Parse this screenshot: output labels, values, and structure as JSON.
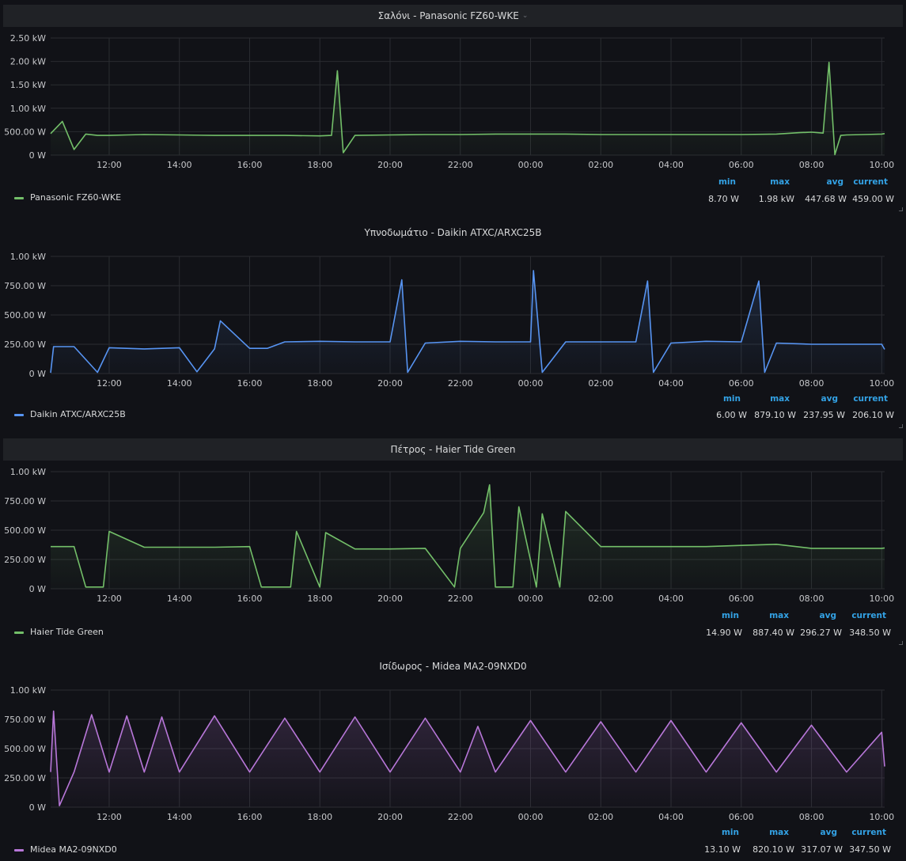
{
  "panels": [
    {
      "title": "Σαλόνι - Panasonic FZ60-WKE",
      "header_style": "bar",
      "has_chevron": true,
      "color": "#73bf69",
      "y_ticks": [
        "2.50 kW",
        "2.00 kW",
        "1.50 kW",
        "1.00 kW",
        "500.00 W",
        "0 W"
      ],
      "y_max": 2500,
      "x_ticks": [
        "12:00",
        "14:00",
        "16:00",
        "18:00",
        "20:00",
        "22:00",
        "00:00",
        "02:00",
        "04:00",
        "06:00",
        "08:00",
        "10:00"
      ],
      "legend": "Panasonic FZ60-WKE",
      "stats_labels": [
        "min",
        "max",
        "avg",
        "current"
      ],
      "stats_values": [
        "8.70 W",
        "1.98 kW",
        "447.68 W",
        "459.00 W"
      ]
    },
    {
      "title": "Υπνοδωμάτιο - Daikin ATXC/ARXC25B",
      "header_style": "plain",
      "has_chevron": false,
      "color": "#5794f2",
      "y_ticks": [
        "1.00 kW",
        "750.00 W",
        "500.00 W",
        "250.00 W",
        "0 W"
      ],
      "y_max": 1000,
      "x_ticks": [
        "12:00",
        "14:00",
        "16:00",
        "18:00",
        "20:00",
        "22:00",
        "00:00",
        "02:00",
        "04:00",
        "06:00",
        "08:00",
        "10:00"
      ],
      "legend": "Daikin ATXC/ARXC25B",
      "stats_labels": [
        "min",
        "max",
        "avg",
        "current"
      ],
      "stats_values": [
        "6.00 W",
        "879.10 W",
        "237.95 W",
        "206.10 W"
      ]
    },
    {
      "title": "Πέτρος - Haier Tide Green",
      "header_style": "bar",
      "has_chevron": false,
      "color": "#73bf69",
      "y_ticks": [
        "1.00 kW",
        "750.00 W",
        "500.00 W",
        "250.00 W",
        "0 W"
      ],
      "y_max": 1000,
      "x_ticks": [
        "12:00",
        "14:00",
        "16:00",
        "18:00",
        "20:00",
        "22:00",
        "00:00",
        "02:00",
        "04:00",
        "06:00",
        "08:00",
        "10:00"
      ],
      "legend": "Haier Tide Green",
      "stats_labels": [
        "min",
        "max",
        "avg",
        "current"
      ],
      "stats_values": [
        "14.90 W",
        "887.40 W",
        "296.27 W",
        "348.50 W"
      ]
    },
    {
      "title": "Ισίδωρος - Midea MA2-09NXD0",
      "header_style": "plain",
      "has_chevron": false,
      "color": "#b877d9",
      "y_ticks": [
        "1.00 kW",
        "750.00 W",
        "500.00 W",
        "250.00 W",
        "0 W"
      ],
      "y_max": 1000,
      "x_ticks": [
        "12:00",
        "14:00",
        "16:00",
        "18:00",
        "20:00",
        "22:00",
        "00:00",
        "02:00",
        "04:00",
        "06:00",
        "08:00",
        "10:00"
      ],
      "legend": "Midea MA2-09NXD0",
      "stats_labels": [
        "min",
        "max",
        "avg",
        "current"
      ],
      "stats_values": [
        "13.10 W",
        "820.10 W",
        "317.07 W",
        "347.50 W"
      ]
    }
  ],
  "chart_data": [
    {
      "type": "line",
      "title": "Σαλόνι - Panasonic FZ60-WKE",
      "xlabel": "",
      "ylabel": "",
      "ylim": [
        0,
        2500
      ],
      "y_unit": "W",
      "grid": true,
      "series": [
        {
          "name": "Panasonic FZ60-WKE",
          "x": [
            "10:20",
            "10:40",
            "11:00",
            "11:20",
            "11:40",
            "12:00",
            "12:30",
            "13:00",
            "14:00",
            "15:00",
            "16:00",
            "17:00",
            "18:00",
            "18:20",
            "18:30",
            "18:40",
            "19:00",
            "20:00",
            "21:00",
            "22:00",
            "23:00",
            "00:00",
            "01:00",
            "02:00",
            "03:00",
            "04:00",
            "05:00",
            "06:00",
            "07:00",
            "07:40",
            "08:00",
            "08:20",
            "08:30",
            "08:40",
            "08:50",
            "09:00",
            "09:30",
            "10:00",
            "10:05"
          ],
          "values": [
            460,
            720,
            120,
            450,
            420,
            420,
            430,
            440,
            430,
            420,
            420,
            420,
            410,
            420,
            1800,
            50,
            420,
            430,
            440,
            440,
            450,
            450,
            450,
            440,
            440,
            440,
            440,
            440,
            450,
            480,
            490,
            470,
            1980,
            10,
            420,
            430,
            440,
            450,
            459
          ]
        }
      ]
    },
    {
      "type": "line",
      "title": "Υπνοδωμάτιο - Daikin ATXC/ARXC25B",
      "xlabel": "",
      "ylabel": "",
      "ylim": [
        0,
        1000
      ],
      "y_unit": "W",
      "grid": true,
      "series": [
        {
          "name": "Daikin ATXC/ARXC25B",
          "x": [
            "10:20",
            "10:25",
            "11:00",
            "11:40",
            "12:00",
            "13:00",
            "14:00",
            "14:30",
            "15:00",
            "15:10",
            "16:00",
            "16:30",
            "17:00",
            "18:00",
            "19:00",
            "20:00",
            "20:20",
            "20:30",
            "21:00",
            "22:00",
            "23:00",
            "00:00",
            "00:05",
            "00:20",
            "01:00",
            "02:00",
            "03:00",
            "03:20",
            "03:30",
            "04:00",
            "05:00",
            "06:00",
            "06:30",
            "06:40",
            "07:00",
            "08:00",
            "09:00",
            "10:00",
            "10:05"
          ],
          "values": [
            6,
            230,
            230,
            10,
            220,
            210,
            220,
            15,
            210,
            450,
            215,
            215,
            270,
            275,
            270,
            270,
            800,
            10,
            260,
            275,
            270,
            270,
            879,
            10,
            270,
            270,
            270,
            790,
            10,
            260,
            275,
            270,
            790,
            10,
            260,
            250,
            250,
            250,
            206
          ]
        }
      ]
    },
    {
      "type": "line",
      "title": "Πέτρος - Haier Tide Green",
      "xlabel": "",
      "ylabel": "",
      "ylim": [
        0,
        1000
      ],
      "y_unit": "W",
      "grid": true,
      "series": [
        {
          "name": "Haier Tide Green",
          "x": [
            "10:20",
            "11:00",
            "11:20",
            "11:50",
            "12:00",
            "13:00",
            "14:00",
            "15:00",
            "16:00",
            "16:20",
            "17:10",
            "17:20",
            "18:00",
            "18:10",
            "19:00",
            "20:00",
            "21:00",
            "21:50",
            "22:00",
            "22:40",
            "22:50",
            "23:00",
            "23:30",
            "23:40",
            "00:10",
            "00:20",
            "00:50",
            "01:00",
            "02:00",
            "03:00",
            "04:00",
            "05:00",
            "06:00",
            "07:00",
            "08:00",
            "09:00",
            "10:00",
            "10:05"
          ],
          "values": [
            360,
            360,
            15,
            15,
            490,
            355,
            355,
            355,
            360,
            15,
            15,
            490,
            15,
            480,
            340,
            340,
            345,
            15,
            345,
            650,
            887,
            15,
            15,
            700,
            15,
            640,
            15,
            660,
            360,
            360,
            360,
            360,
            370,
            380,
            345,
            345,
            345,
            348.5
          ]
        }
      ]
    },
    {
      "type": "line",
      "title": "Ισίδωρος - Midea MA2-09NXD0",
      "xlabel": "",
      "ylabel": "",
      "ylim": [
        0,
        1000
      ],
      "y_unit": "W",
      "grid": true,
      "series": [
        {
          "name": "Midea MA2-09NXD0",
          "x": [
            "10:20",
            "10:25",
            "10:35",
            "11:00",
            "11:30",
            "12:00",
            "12:30",
            "13:00",
            "13:30",
            "14:00",
            "15:00",
            "16:00",
            "17:00",
            "18:00",
            "19:00",
            "20:00",
            "21:00",
            "22:00",
            "22:30",
            "23:00",
            "00:00",
            "01:00",
            "02:00",
            "03:00",
            "04:00",
            "05:00",
            "06:00",
            "07:00",
            "08:00",
            "09:00",
            "10:00",
            "10:05"
          ],
          "values": [
            300,
            820,
            13,
            300,
            790,
            300,
            780,
            300,
            770,
            300,
            780,
            300,
            760,
            300,
            770,
            300,
            760,
            300,
            690,
            300,
            740,
            300,
            730,
            300,
            740,
            300,
            720,
            300,
            700,
            300,
            640,
            347.5
          ]
        }
      ]
    }
  ]
}
